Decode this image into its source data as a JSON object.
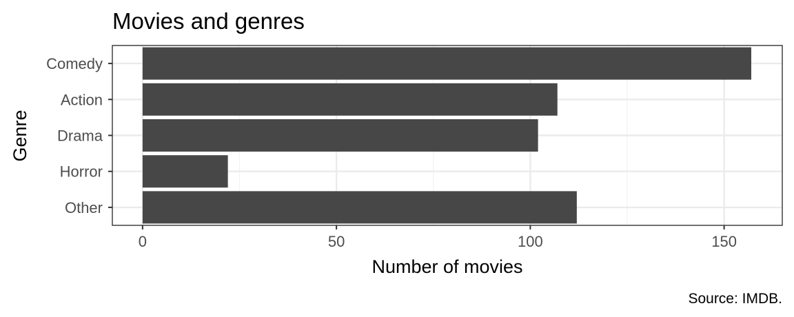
{
  "chart_data": {
    "type": "bar",
    "orientation": "horizontal",
    "title": "Movies and genres",
    "xlabel": "Number of movies",
    "ylabel": "Genre",
    "caption": "Source: IMDB.",
    "categories": [
      "Comedy",
      "Action",
      "Drama",
      "Horror",
      "Other"
    ],
    "values": [
      157,
      107,
      102,
      22,
      112
    ],
    "xlim": [
      -7.8,
      165
    ],
    "xticks": [
      0,
      50,
      100,
      150
    ],
    "xtick_labels": [
      "0",
      "50",
      "100",
      "150"
    ],
    "grid": true,
    "legend": "none",
    "bar_color": "#474747",
    "grid_major_color": "#ebebeb",
    "grid_minor_color": "#f2f2f2",
    "panel_border_color": "#333333"
  }
}
